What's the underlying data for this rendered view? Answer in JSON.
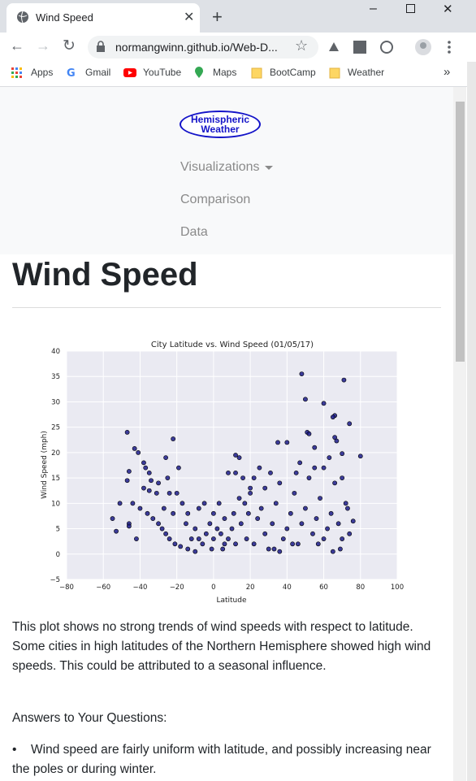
{
  "browser": {
    "tab_title": "Wind Speed",
    "url": "normangwinn.github.io/Web-D...",
    "bookmarks": [
      "Apps",
      "Gmail",
      "YouTube",
      "Maps",
      "BootCamp",
      "Weather"
    ]
  },
  "nav": {
    "logo_lines": [
      "Hemispheric",
      "Weather"
    ],
    "links": [
      "Visualizations",
      "Comparison",
      "Data"
    ]
  },
  "page": {
    "heading": "Wind Speed",
    "description": "This plot shows no strong trends of wind speeds with respect to latitude. Some cities in high latitudes of the Northern Hemisphere showed high wind speeds. This could be attributed to a seasonal influence.",
    "answers_title": "Answers to Your Questions:",
    "answers": [
      "Wind speed are fairly uniform with latitude, and possibly increasing near the poles or during winter."
    ]
  },
  "chart_data": {
    "type": "scatter",
    "title": "City Latitude vs. Wind Speed (01/05/17)",
    "x_label": "Latitude",
    "y_label": "Wind Speed (mph)",
    "color": "#1c1c8a",
    "grid": true,
    "xlim": [
      -80,
      100
    ],
    "ylim": [
      -5,
      40
    ],
    "xticks": [
      {
        "value": -80,
        "label": "−80"
      },
      {
        "value": -60,
        "label": "−60"
      },
      {
        "value": -40,
        "label": "−40"
      },
      {
        "value": -20,
        "label": "−20"
      },
      0,
      20,
      40,
      60,
      80,
      100
    ],
    "yticks": [
      {
        "value": -5,
        "label": "−5"
      },
      0,
      5,
      10,
      15,
      20,
      25,
      30,
      35,
      40
    ],
    "x": [
      48,
      71,
      50,
      60,
      66,
      65,
      74,
      -47,
      51,
      52,
      -22,
      66,
      67,
      35,
      40,
      -43,
      -41,
      55,
      70,
      80,
      12,
      14,
      -26,
      -38,
      -37,
      -35,
      -19,
      -46,
      -47,
      -34,
      -30,
      -25,
      -24,
      -20,
      -17,
      -14,
      -44,
      -40,
      -36,
      -33,
      -30,
      -28,
      -26,
      -24,
      -21,
      -18,
      -14,
      -10,
      -8,
      -6,
      -4,
      -2,
      0,
      2,
      4,
      6,
      8,
      10,
      12,
      15,
      17,
      20,
      22,
      24,
      26,
      28,
      30,
      32,
      34,
      36,
      38,
      40,
      42,
      44,
      46,
      48,
      50,
      52,
      54,
      56,
      58,
      60,
      62,
      64,
      66,
      68,
      70,
      72,
      74,
      76,
      -55,
      -53,
      -51,
      -46,
      -46,
      -42,
      -12,
      -10,
      5,
      18,
      22,
      28,
      31,
      45,
      47,
      55,
      60,
      63,
      70,
      73,
      11,
      14,
      19,
      25,
      33,
      36,
      43,
      57,
      69,
      65,
      3,
      -5,
      -8,
      -15,
      -22,
      -27,
      -31,
      -35,
      -38,
      8,
      12,
      16,
      20,
      0,
      -1,
      6
    ],
    "values": [
      35.5,
      34.3,
      30.5,
      29.7,
      27.3,
      27,
      25.7,
      24,
      24,
      23.7,
      22.7,
      23,
      22.3,
      22,
      22,
      20.8,
      20,
      21,
      19.8,
      19.3,
      19.5,
      19,
      19,
      18,
      17,
      16,
      17,
      16.3,
      14.5,
      14.5,
      14,
      15,
      12,
      12,
      10,
      8,
      10,
      9,
      8,
      7,
      6,
      5,
      4,
      3,
      2,
      1.5,
      1,
      0.5,
      3,
      2,
      4,
      6,
      8,
      5,
      4,
      2,
      3,
      5,
      2,
      6,
      10,
      12,
      15,
      7,
      9,
      4,
      1,
      6,
      10,
      14,
      3,
      5,
      8,
      12,
      2,
      6,
      9,
      15,
      4,
      7,
      11,
      3,
      5,
      8,
      14,
      6,
      3,
      10,
      4,
      6.5,
      7,
      4.5,
      10,
      6,
      5.5,
      3,
      3,
      5,
      1,
      3,
      2,
      13,
      16,
      16,
      18,
      17,
      17,
      19,
      15,
      9,
      8,
      11,
      8,
      17,
      1,
      0.5,
      2,
      2,
      1,
      0.5,
      10,
      10,
      9,
      6,
      8,
      9,
      12,
      12.5,
      13,
      16,
      16,
      15,
      13,
      3,
      1,
      7
    ]
  }
}
